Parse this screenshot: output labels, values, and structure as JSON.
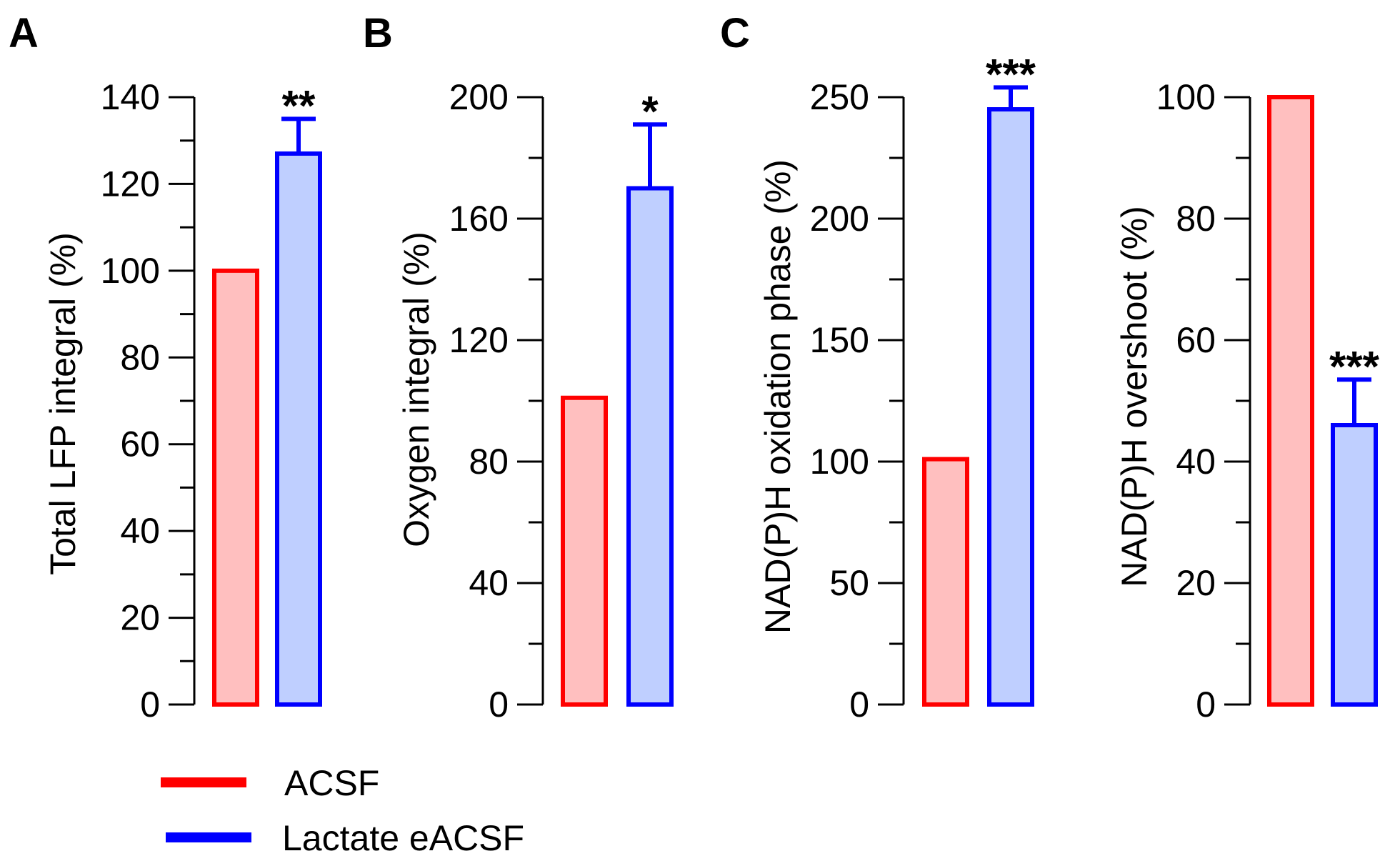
{
  "legend": {
    "entries": [
      {
        "name": "ACSF",
        "color": "#ff0000",
        "fill": "#ffbfbf"
      },
      {
        "name": "Lactate eACSF",
        "color": "#0000ff",
        "fill": "#bfcfff"
      }
    ]
  },
  "chart_data": [
    {
      "type": "bar",
      "panel": "A",
      "categories": [
        "ACSF",
        "Lactate eACSF"
      ],
      "values": [
        100,
        127
      ],
      "errors": [
        0,
        8
      ],
      "significance": [
        "",
        "**"
      ],
      "title": "",
      "xlabel": "",
      "ylabel": "Total LFP integral (%)",
      "ylim": [
        0,
        140
      ],
      "yticks": [
        "0",
        "20",
        "40",
        "60",
        "80",
        "100",
        "120",
        "140"
      ],
      "ytick_values": [
        0,
        20,
        40,
        60,
        80,
        100,
        120,
        140
      ],
      "minor_step": 10
    },
    {
      "type": "bar",
      "panel": "B",
      "categories": [
        "ACSF",
        "Lactate eACSF"
      ],
      "values": [
        101,
        170
      ],
      "errors": [
        0,
        21
      ],
      "significance": [
        "",
        "*"
      ],
      "title": "",
      "xlabel": "",
      "ylabel": "Oxygen integral (%)",
      "ylim": [
        0,
        200
      ],
      "yticks": [
        "0",
        "40",
        "80",
        "120",
        "160",
        "200"
      ],
      "ytick_values": [
        0,
        40,
        80,
        120,
        160,
        200
      ],
      "minor_step": 20
    },
    {
      "type": "bar",
      "panel": "C",
      "categories": [
        "ACSF",
        "Lactate eACSF"
      ],
      "values": [
        101,
        245
      ],
      "errors": [
        0,
        9
      ],
      "significance": [
        "",
        "***"
      ],
      "title": "",
      "xlabel": "",
      "ylabel": "NAD(P)H oxidation phase (%)",
      "ylim": [
        0,
        250
      ],
      "yticks": [
        "0",
        "50",
        "100",
        "150",
        "200",
        "250"
      ],
      "ytick_values": [
        0,
        50,
        100,
        150,
        200,
        250
      ],
      "minor_step": 25
    },
    {
      "type": "bar",
      "panel": "",
      "categories": [
        "ACSF",
        "Lactate eACSF"
      ],
      "values": [
        100,
        46
      ],
      "errors": [
        0,
        7.5
      ],
      "significance": [
        "",
        "***"
      ],
      "title": "",
      "xlabel": "",
      "ylabel": "NAD(P)H overshoot (%)",
      "ylim": [
        0,
        100
      ],
      "yticks": [
        "0",
        "20",
        "40",
        "60",
        "80",
        "100"
      ],
      "ytick_values": [
        0,
        20,
        40,
        60,
        80,
        100
      ],
      "minor_step": 10
    }
  ]
}
